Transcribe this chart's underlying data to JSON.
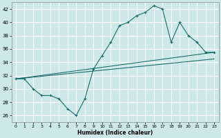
{
  "xlabel": "Humidex (Indice chaleur)",
  "xlim": [
    -0.5,
    23.5
  ],
  "ylim": [
    25,
    43
  ],
  "yticks": [
    26,
    28,
    30,
    32,
    34,
    36,
    38,
    40,
    42
  ],
  "xticks": [
    0,
    1,
    2,
    3,
    4,
    5,
    6,
    7,
    8,
    9,
    10,
    11,
    12,
    13,
    14,
    15,
    16,
    17,
    18,
    19,
    20,
    21,
    22,
    23
  ],
  "bg_color": "#cce8e8",
  "line_color": "#1a6b6b",
  "grid_color": "#b8d8d8",
  "lines": [
    {
      "x": [
        0,
        1,
        2,
        3,
        4,
        5,
        6,
        7,
        8,
        9,
        10,
        11,
        12,
        13,
        14,
        15,
        16,
        17,
        18,
        19,
        20,
        21,
        22,
        23
      ],
      "y": [
        31.5,
        31.5,
        30.0,
        29.0,
        29.0,
        28.5,
        27.0,
        26.0,
        28.5,
        33.0,
        35.0,
        37.0,
        39.5,
        40.0,
        41.0,
        41.5,
        42.5,
        42.0,
        37.0,
        40.0,
        38.0,
        37.0,
        35.5,
        35.5
      ],
      "has_markers": true
    },
    {
      "x": [
        0,
        23
      ],
      "y": [
        31.5,
        35.5
      ],
      "has_markers": false
    },
    {
      "x": [
        0,
        23
      ],
      "y": [
        31.5,
        34.5
      ],
      "has_markers": false
    }
  ]
}
